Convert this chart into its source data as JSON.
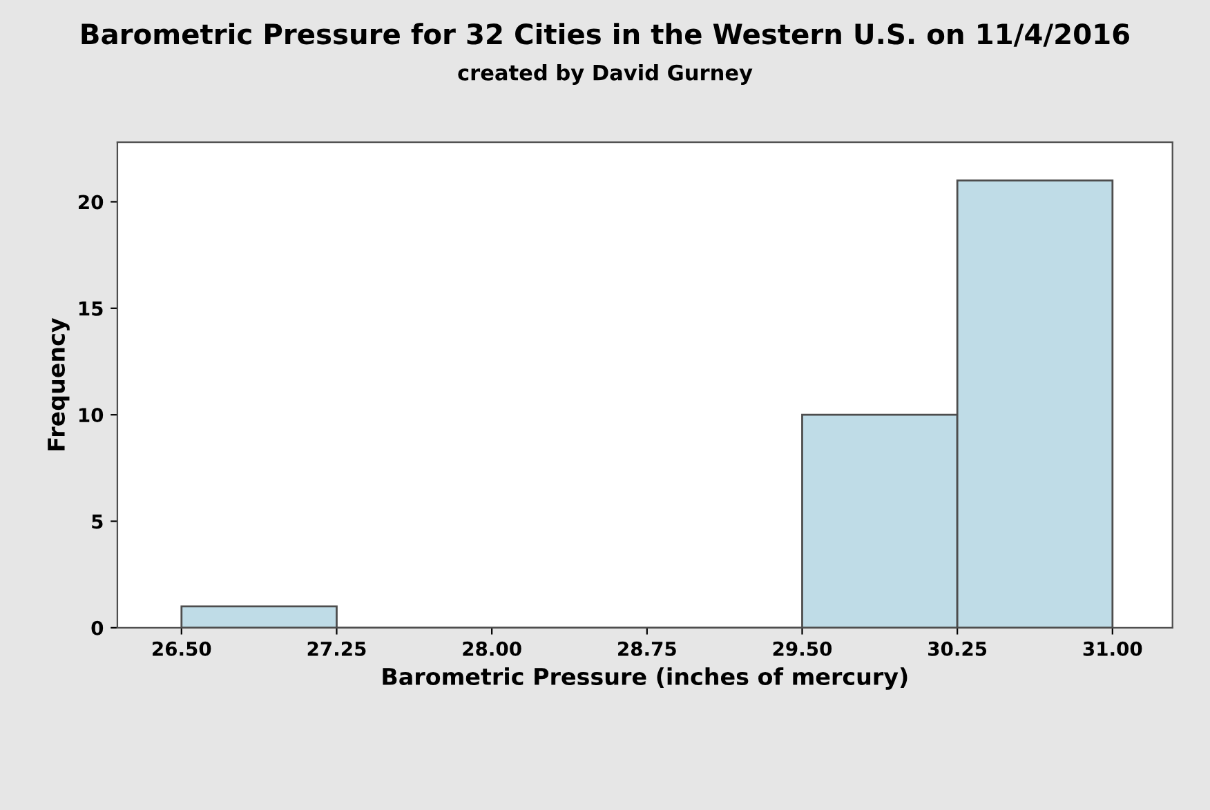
{
  "chart_data": {
    "type": "histogram",
    "title": "Barometric Pressure for 32 Cities in the Western U.S. on 11/4/2016",
    "subtitle": "created by David Gurney",
    "xlabel": "Barometric Pressure (inches of mercury)",
    "ylabel": "Frequency",
    "bins": [
      26.5,
      27.25,
      28.0,
      28.75,
      29.5,
      30.25,
      31.0
    ],
    "values": [
      1,
      0,
      0,
      0,
      10,
      21
    ],
    "color": "#bfdce7",
    "xlim": [
      26.19,
      31.29
    ],
    "ylim": [
      0,
      22.8
    ],
    "xticks": [
      {
        "value": 26.5,
        "label": "26.50"
      },
      {
        "value": 27.25,
        "label": "27.25"
      },
      {
        "value": 28.0,
        "label": "28.00"
      },
      {
        "value": 28.75,
        "label": "28.75"
      },
      {
        "value": 29.5,
        "label": "29.50"
      },
      {
        "value": 30.25,
        "label": "30.25"
      },
      {
        "value": 31.0,
        "label": "31.00"
      }
    ],
    "yticks": [
      0,
      5,
      10,
      15,
      20
    ],
    "grid": false
  }
}
